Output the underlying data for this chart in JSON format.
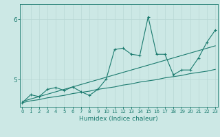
{
  "title": "",
  "xlabel": "Humidex (Indice chaleur)",
  "ylabel": "",
  "bg_color": "#cce8e5",
  "line_color": "#1a7a6e",
  "grid_color": "#b8d8d5",
  "x_values": [
    0,
    1,
    2,
    3,
    4,
    5,
    6,
    7,
    8,
    9,
    10,
    11,
    12,
    13,
    14,
    15,
    16,
    17,
    18,
    19,
    20,
    21,
    22,
    23
  ],
  "y_main": [
    4.62,
    4.75,
    4.72,
    4.84,
    4.87,
    4.82,
    4.88,
    4.8,
    4.74,
    4.84,
    5.01,
    5.5,
    5.52,
    5.42,
    5.4,
    6.04,
    5.42,
    5.42,
    5.08,
    5.16,
    5.16,
    5.36,
    5.62,
    5.82
  ],
  "y_trend1": [
    4.62,
    4.65,
    4.67,
    4.7,
    4.72,
    4.74,
    4.77,
    4.79,
    4.81,
    4.84,
    4.86,
    4.88,
    4.91,
    4.93,
    4.96,
    4.98,
    5.0,
    5.03,
    5.05,
    5.07,
    5.1,
    5.12,
    5.14,
    5.17
  ],
  "y_trend2": [
    4.64,
    4.68,
    4.72,
    4.76,
    4.8,
    4.84,
    4.88,
    4.92,
    4.96,
    5.0,
    5.04,
    5.08,
    5.12,
    5.16,
    5.2,
    5.24,
    5.28,
    5.32,
    5.36,
    5.4,
    5.44,
    5.48,
    5.52,
    5.56
  ],
  "ylim": [
    4.55,
    6.25
  ],
  "xlim": [
    -0.3,
    23.3
  ],
  "yticks": [
    5,
    6
  ],
  "xticks": [
    0,
    1,
    2,
    3,
    4,
    5,
    6,
    7,
    8,
    9,
    10,
    11,
    12,
    13,
    14,
    15,
    16,
    17,
    18,
    19,
    20,
    21,
    22,
    23
  ]
}
